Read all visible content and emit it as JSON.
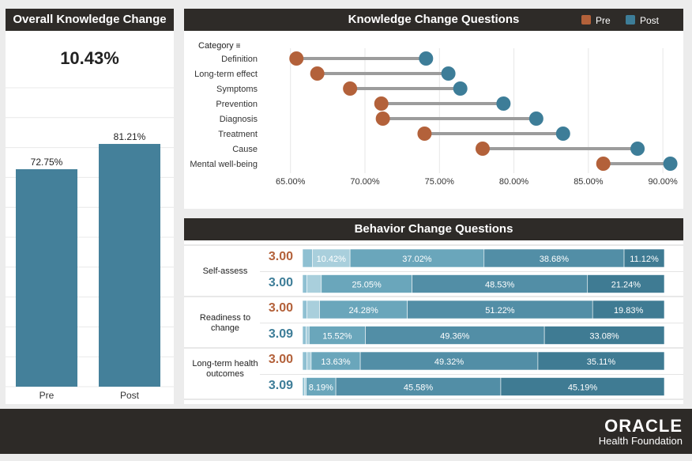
{
  "overall": {
    "title": "Overall Knowledge Change",
    "change": "10.43%",
    "bars": [
      {
        "label": "Pre",
        "value": 72.75,
        "value_label": "72.75%"
      },
      {
        "label": "Post",
        "value": 81.21,
        "value_label": "81.21%"
      }
    ],
    "bar_color": "#44809a"
  },
  "knowledge": {
    "title": "Knowledge Change Questions",
    "category_label": "Category",
    "legend": [
      {
        "name": "Pre",
        "color": "#b3613a"
      },
      {
        "name": "Post",
        "color": "#3d7d98"
      }
    ]
  },
  "behavior": {
    "title": "Behavior Change Questions",
    "pre_color": "#b3613a",
    "post_color": "#3d7d98",
    "groups": [
      {
        "label": "Self-assess",
        "rows": [
          {
            "score": "3.00",
            "type": "pre",
            "segments": [
              {
                "v": 2.7,
                "l": ""
              },
              {
                "v": 10.42,
                "l": "10.42%"
              },
              {
                "v": 37.02,
                "l": "37.02%"
              },
              {
                "v": 38.68,
                "l": "38.68%"
              },
              {
                "v": 11.12,
                "l": "11.12%"
              }
            ]
          },
          {
            "score": "3.00",
            "type": "post",
            "segments": [
              {
                "v": 1.2,
                "l": ""
              },
              {
                "v": 4.0,
                "l": ""
              },
              {
                "v": 25.05,
                "l": "25.05%"
              },
              {
                "v": 48.53,
                "l": "48.53%"
              },
              {
                "v": 21.24,
                "l": "21.24%"
              }
            ]
          }
        ]
      },
      {
        "label": "Readiness to change",
        "rows": [
          {
            "score": "3.00",
            "type": "pre",
            "segments": [
              {
                "v": 1.2,
                "l": ""
              },
              {
                "v": 3.5,
                "l": ""
              },
              {
                "v": 24.28,
                "l": "24.28%"
              },
              {
                "v": 51.22,
                "l": "51.22%"
              },
              {
                "v": 19.83,
                "l": "19.83%"
              }
            ]
          },
          {
            "score": "3.09",
            "type": "post",
            "segments": [
              {
                "v": 1.0,
                "l": ""
              },
              {
                "v": 0.8,
                "l": ""
              },
              {
                "v": 15.52,
                "l": "15.52%"
              },
              {
                "v": 49.36,
                "l": "49.36%"
              },
              {
                "v": 33.08,
                "l": "33.08%"
              }
            ]
          }
        ]
      },
      {
        "label": "Long-term health outcomes",
        "rows": [
          {
            "score": "3.00",
            "type": "pre",
            "segments": [
              {
                "v": 1.2,
                "l": ""
              },
              {
                "v": 1.2,
                "l": ""
              },
              {
                "v": 13.63,
                "l": "13.63%"
              },
              {
                "v": 49.32,
                "l": "49.32%"
              },
              {
                "v": 35.11,
                "l": "35.11%"
              }
            ]
          },
          {
            "score": "3.09",
            "type": "post",
            "segments": [
              {
                "v": 0.5,
                "l": ""
              },
              {
                "v": 0.5,
                "l": ""
              },
              {
                "v": 8.19,
                "l": "8.19%"
              },
              {
                "v": 45.58,
                "l": "45.58%"
              },
              {
                "v": 45.19,
                "l": "45.19%"
              }
            ]
          }
        ]
      }
    ]
  },
  "footer": {
    "logo_main": "ORACLE",
    "logo_sub": "Health Foundation"
  },
  "chart_data": [
    {
      "type": "bar",
      "title": "Overall Knowledge Change",
      "categories": [
        "Pre",
        "Post"
      ],
      "values": [
        72.75,
        81.21
      ],
      "ylim": [
        0,
        100
      ]
    },
    {
      "type": "scatter",
      "title": "Knowledge Change Questions",
      "ylabel": "Category",
      "categories": [
        "Definition",
        "Long-term effect",
        "Symptoms",
        "Prevention",
        "Diagnosis",
        "Treatment",
        "Cause",
        "Mental well-being"
      ],
      "series": [
        {
          "name": "Pre",
          "values": [
            65.4,
            66.8,
            69.0,
            71.1,
            71.2,
            74.0,
            77.9,
            86.0
          ]
        },
        {
          "name": "Post",
          "values": [
            74.1,
            75.6,
            76.4,
            79.3,
            81.5,
            83.3,
            88.3,
            90.5
          ]
        }
      ],
      "xlim": [
        63.0,
        91.0
      ],
      "xticks": [
        "65.00%",
        "70.00%",
        "75.00%",
        "80.00%",
        "85.00%",
        "90.00%"
      ],
      "xtick_values": [
        65,
        70,
        75,
        80,
        85,
        90
      ],
      "grid": true,
      "legend": "top-right"
    },
    {
      "type": "bar",
      "title": "Behavior Change Questions",
      "stacked": true,
      "categories": [
        "Self-assess pre",
        "Self-assess post",
        "Readiness to change pre",
        "Readiness to change post",
        "Long-term health outcomes pre",
        "Long-term health outcomes post"
      ],
      "series": [
        {
          "values": [
            10.42,
            25.05,
            24.28,
            15.52,
            13.63,
            8.19
          ]
        },
        {
          "values": [
            37.02,
            48.53,
            51.22,
            49.36,
            49.32,
            45.58
          ]
        },
        {
          "values": [
            38.68,
            21.24,
            19.83,
            33.08,
            35.11,
            45.19
          ]
        },
        {
          "values": [
            11.12,
            null,
            null,
            null,
            null,
            null
          ]
        }
      ]
    }
  ]
}
